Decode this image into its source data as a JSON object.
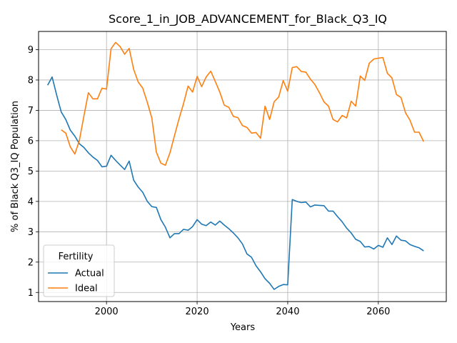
{
  "chart_data": {
    "type": "line",
    "title": "Score_1_in_JOB_ADVANCEMENT_for_Black_Q3_IQ",
    "xlabel": "Years",
    "ylabel": "% of Black Q3_IQ Population",
    "xlim": [
      1985,
      2075
    ],
    "ylim": [
      0.7,
      9.6
    ],
    "xticks": [
      2000,
      2020,
      2040,
      2060
    ],
    "yticks": [
      1,
      2,
      3,
      4,
      5,
      6,
      7,
      8,
      9
    ],
    "grid": true,
    "legend": {
      "title": "Fertility",
      "placement": "lower-left"
    },
    "series": [
      {
        "name": "Actual",
        "color": "#1f77b4",
        "x": [
          1987,
          1988,
          1989,
          1990,
          1991,
          1992,
          1993,
          1994,
          1995,
          1996,
          1997,
          1998,
          1999,
          2000,
          2001,
          2002,
          2003,
          2004,
          2005,
          2006,
          2007,
          2008,
          2009,
          2010,
          2011,
          2012,
          2013,
          2014,
          2015,
          2016,
          2017,
          2018,
          2019,
          2020,
          2021,
          2022,
          2023,
          2024,
          2025,
          2026,
          2027,
          2028,
          2029,
          2030,
          2031,
          2032,
          2033,
          2034,
          2035,
          2036,
          2037,
          2038,
          2039,
          2040,
          2041,
          2042,
          2043,
          2044,
          2045,
          2046,
          2047,
          2048,
          2049,
          2050,
          2051,
          2052,
          2053,
          2054,
          2055,
          2056,
          2057,
          2058,
          2059,
          2060,
          2061,
          2062,
          2063,
          2064,
          2065,
          2066,
          2067,
          2068,
          2069,
          2070
        ],
        "values": [
          7.83,
          8.1,
          7.5,
          6.95,
          6.7,
          6.35,
          6.15,
          5.9,
          5.78,
          5.6,
          5.46,
          5.35,
          5.14,
          5.16,
          5.52,
          5.35,
          5.2,
          5.05,
          5.33,
          4.7,
          4.47,
          4.3,
          4.0,
          3.83,
          3.8,
          3.4,
          3.15,
          2.8,
          2.94,
          2.94,
          3.08,
          3.05,
          3.17,
          3.4,
          3.25,
          3.2,
          3.32,
          3.22,
          3.35,
          3.22,
          3.1,
          2.96,
          2.8,
          2.6,
          2.27,
          2.16,
          1.88,
          1.68,
          1.45,
          1.3,
          1.1,
          1.2,
          1.26,
          1.25,
          4.06,
          4.0,
          3.96,
          3.98,
          3.82,
          3.88,
          3.87,
          3.86,
          3.68,
          3.68,
          3.5,
          3.33,
          3.12,
          2.96,
          2.75,
          2.68,
          2.5,
          2.51,
          2.43,
          2.55,
          2.49,
          2.8,
          2.58,
          2.86,
          2.72,
          2.7,
          2.58,
          2.52,
          2.47,
          2.37
        ]
      },
      {
        "name": "Ideal",
        "color": "#ff7f0e",
        "x": [
          1990,
          1991,
          1992,
          1993,
          1994,
          1995,
          1996,
          1997,
          1998,
          1999,
          2000,
          2001,
          2002,
          2003,
          2004,
          2005,
          2006,
          2007,
          2008,
          2009,
          2010,
          2011,
          2012,
          2013,
          2014,
          2015,
          2016,
          2017,
          2018,
          2019,
          2020,
          2021,
          2022,
          2023,
          2024,
          2025,
          2026,
          2027,
          2028,
          2029,
          2030,
          2031,
          2032,
          2033,
          2034,
          2035,
          2036,
          2037,
          2038,
          2039,
          2040,
          2041,
          2042,
          2043,
          2044,
          2045,
          2046,
          2047,
          2048,
          2049,
          2050,
          2051,
          2052,
          2053,
          2054,
          2055,
          2056,
          2057,
          2058,
          2059,
          2060,
          2061,
          2062,
          2063,
          2064,
          2065,
          2066,
          2067,
          2068,
          2069,
          2070
        ],
        "values": [
          6.36,
          6.25,
          5.8,
          5.56,
          6.0,
          6.8,
          7.58,
          7.38,
          7.38,
          7.73,
          7.7,
          9.03,
          9.24,
          9.1,
          8.85,
          9.04,
          8.35,
          7.93,
          7.73,
          7.26,
          6.75,
          5.62,
          5.26,
          5.19,
          5.6,
          6.16,
          6.72,
          7.22,
          7.8,
          7.6,
          8.12,
          7.78,
          8.1,
          8.29,
          7.96,
          7.6,
          7.17,
          7.1,
          6.8,
          6.76,
          6.5,
          6.44,
          6.25,
          6.27,
          6.08,
          7.14,
          6.7,
          7.28,
          7.44,
          7.98,
          7.63,
          8.41,
          8.44,
          8.28,
          8.26,
          8.03,
          7.85,
          7.58,
          7.28,
          7.14,
          6.7,
          6.62,
          6.83,
          6.75,
          7.3,
          7.14,
          8.13,
          7.99,
          8.55,
          8.69,
          8.72,
          8.74,
          8.22,
          8.07,
          7.52,
          7.42,
          6.92,
          6.67,
          6.28,
          6.28,
          5.97
        ]
      }
    ]
  }
}
